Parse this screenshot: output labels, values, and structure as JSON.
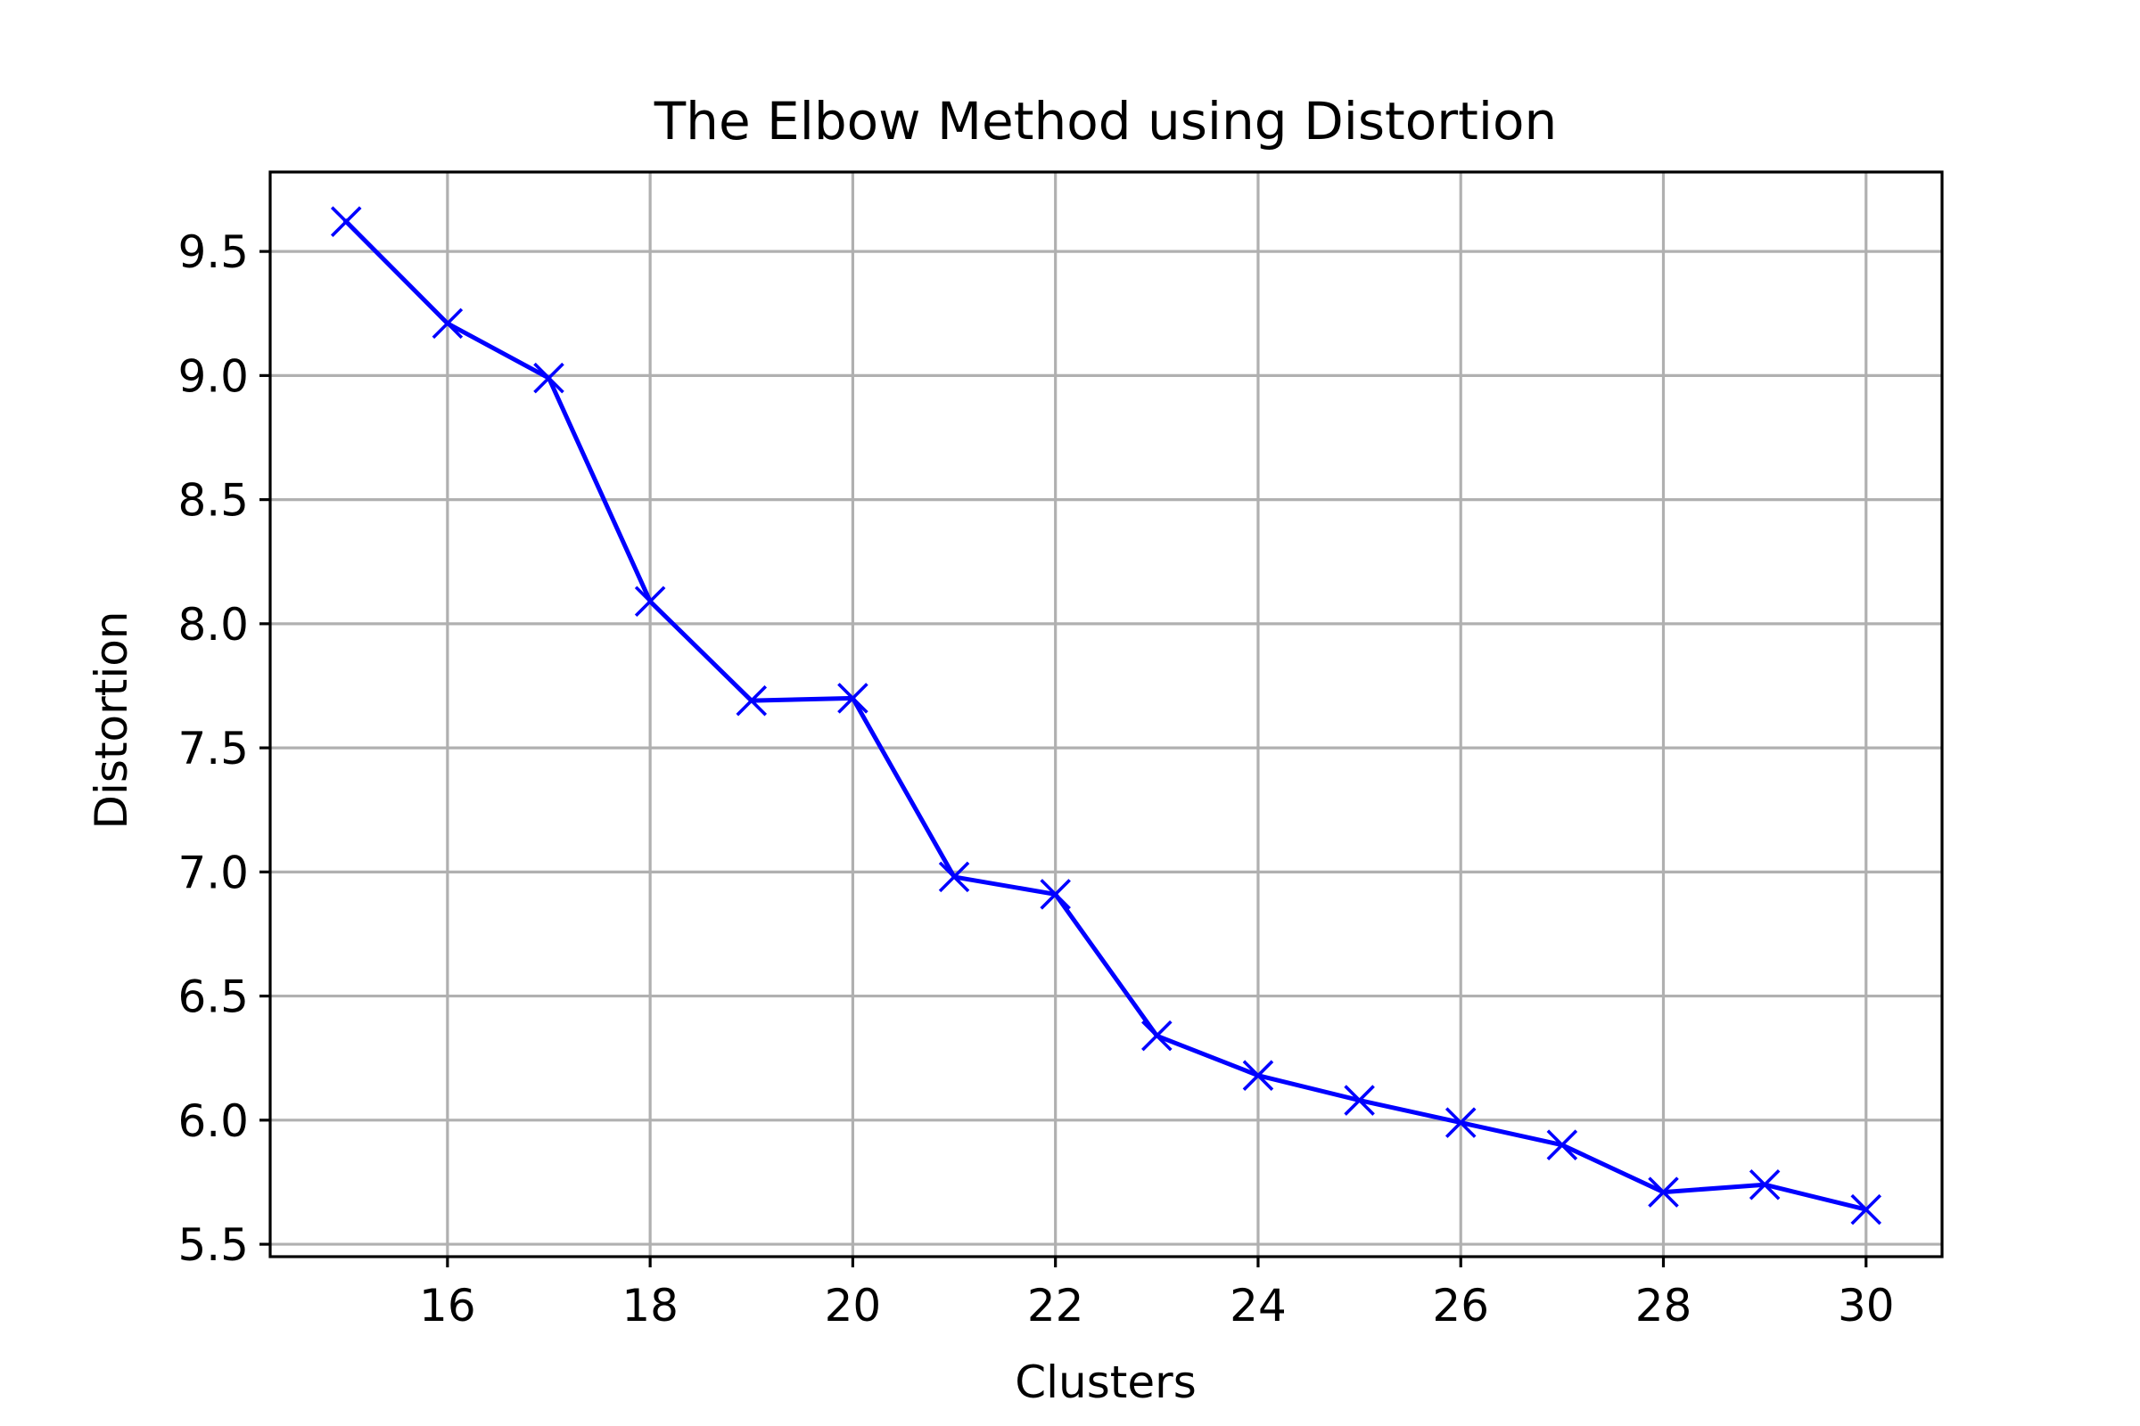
{
  "colors": {
    "series": "#0000ff",
    "grid": "#b0b0b0",
    "axes": "#000000"
  },
  "chart_data": {
    "type": "line",
    "title": "The Elbow Method using Distortion",
    "xlabel": "Clusters",
    "ylabel": "Distortion",
    "xlim": [
      14.25,
      30.75
    ],
    "ylim": [
      5.45,
      9.82
    ],
    "xticks": [
      16,
      18,
      20,
      22,
      24,
      26,
      28,
      30
    ],
    "xtick_labels": [
      "16",
      "18",
      "20",
      "22",
      "24",
      "26",
      "28",
      "30"
    ],
    "yticks": [
      5.5,
      6.0,
      6.5,
      7.0,
      7.5,
      8.0,
      8.5,
      9.0,
      9.5
    ],
    "ytick_labels": [
      "5.5",
      "6.0",
      "6.5",
      "7.0",
      "7.5",
      "8.0",
      "8.5",
      "9.0",
      "9.5"
    ],
    "grid": true,
    "marker": "x",
    "series": [
      {
        "x": [
          15,
          16,
          17,
          18,
          19,
          20,
          21,
          22,
          23,
          24,
          25,
          26,
          27,
          28,
          29,
          30
        ],
        "values": [
          9.62,
          9.21,
          8.99,
          8.09,
          7.69,
          7.7,
          6.98,
          6.91,
          6.34,
          6.18,
          6.08,
          5.99,
          5.9,
          5.71,
          5.74,
          5.64
        ]
      }
    ]
  }
}
